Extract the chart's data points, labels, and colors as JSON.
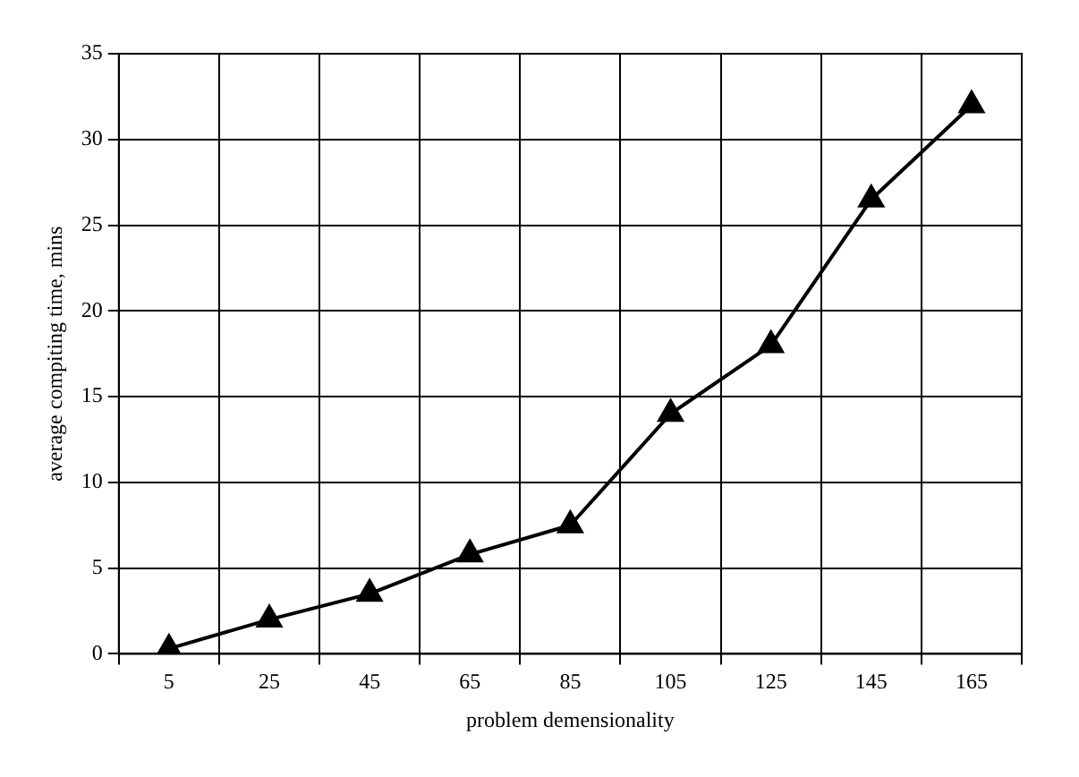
{
  "chart_data": {
    "type": "line",
    "xlabel": "problem demensionality",
    "ylabel": "average compiting time, mins",
    "categories": [
      "5",
      "25",
      "45",
      "65",
      "85",
      "105",
      "125",
      "145",
      "165"
    ],
    "series": [
      {
        "color": "#000000",
        "values": [
          0.3,
          2,
          3.5,
          5.8,
          7.5,
          14,
          18,
          26.5,
          32
        ]
      }
    ],
    "ylim": [
      0,
      35
    ],
    "yticks": [
      0,
      5,
      10,
      15,
      20,
      25,
      30,
      35
    ],
    "grid": true,
    "legend": false,
    "marker": "triangle",
    "line_style": "solid"
  }
}
